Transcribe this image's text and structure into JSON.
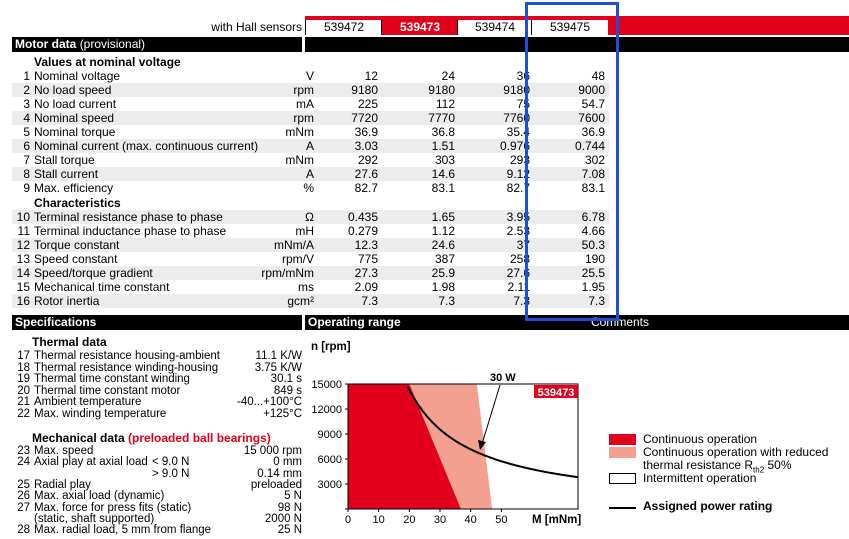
{
  "header": {
    "hall_label": "with Hall sensors",
    "variants": [
      {
        "label": "539472",
        "selected": false
      },
      {
        "label": "539473",
        "selected": true
      },
      {
        "label": "539474",
        "selected": false
      },
      {
        "label": "539475",
        "selected": false
      }
    ]
  },
  "motor_data": {
    "title": "Motor data",
    "subtitle": "(provisional)",
    "section_nominal": "Values at nominal voltage",
    "section_characteristics": "Characteristics",
    "rows": [
      {
        "n": "1",
        "label": "Nominal voltage",
        "unit": "V",
        "values": [
          "12",
          "24",
          "36",
          "48"
        ]
      },
      {
        "n": "2",
        "label": "No load speed",
        "unit": "rpm",
        "values": [
          "9180",
          "9180",
          "9180",
          "9000"
        ]
      },
      {
        "n": "3",
        "label": "No load current",
        "unit": "mA",
        "values": [
          "225",
          "112",
          "75",
          "54.7"
        ]
      },
      {
        "n": "4",
        "label": "Nominal speed",
        "unit": "rpm",
        "values": [
          "7720",
          "7770",
          "7760",
          "7600"
        ]
      },
      {
        "n": "5",
        "label": "Nominal torque",
        "unit": "mNm",
        "values": [
          "36.9",
          "36.8",
          "35.4",
          "36.9"
        ]
      },
      {
        "n": "6",
        "label": "Nominal current (max. continuous current)",
        "unit": "A",
        "values": [
          "3.03",
          "1.51",
          "0.976",
          "0.744"
        ]
      },
      {
        "n": "7",
        "label": "Stall torque",
        "unit": "mNm",
        "values": [
          "292",
          "303",
          "293",
          "302"
        ]
      },
      {
        "n": "8",
        "label": "Stall current",
        "unit": "A",
        "values": [
          "27.6",
          "14.6",
          "9.12",
          "7.08"
        ]
      },
      {
        "n": "9",
        "label": "Max. efficiency",
        "unit": "%",
        "values": [
          "82.7",
          "83.1",
          "82.7",
          "83.1"
        ]
      },
      {
        "n": "10",
        "label": "Terminal resistance phase to phase",
        "unit": "Ω",
        "values": [
          "0.435",
          "1.65",
          "3.95",
          "6.78"
        ]
      },
      {
        "n": "11",
        "label": "Terminal inductance phase to phase",
        "unit": "mH",
        "values": [
          "0.279",
          "1.12",
          "2.53",
          "4.66"
        ]
      },
      {
        "n": "12",
        "label": "Torque constant",
        "unit": "mNm/A",
        "values": [
          "12.3",
          "24.6",
          "37",
          "50.3"
        ]
      },
      {
        "n": "13",
        "label": "Speed constant",
        "unit": "rpm/V",
        "values": [
          "775",
          "387",
          "258",
          "190"
        ]
      },
      {
        "n": "14",
        "label": "Speed/torque gradient",
        "unit": "rpm/mNm",
        "values": [
          "27.3",
          "25.9",
          "27.6",
          "25.5"
        ]
      },
      {
        "n": "15",
        "label": "Mechanical time constant",
        "unit": "ms",
        "values": [
          "2.09",
          "1.98",
          "2.11",
          "1.95"
        ]
      },
      {
        "n": "16",
        "label": "Rotor inertia",
        "unit": "gcm²",
        "values": [
          "7.3",
          "7.3",
          "7.3",
          "7.3"
        ]
      }
    ]
  },
  "specifications": {
    "title": "Specifications",
    "thermal_title": "Thermal data",
    "thermal": [
      {
        "n": "17",
        "label": "Thermal resistance housing-ambient",
        "value": "11.1 K/W"
      },
      {
        "n": "18",
        "label": "Thermal resistance winding-housing",
        "value": "3.75 K/W"
      },
      {
        "n": "19",
        "label": "Thermal time constant winding",
        "value": "30.1 s"
      },
      {
        "n": "20",
        "label": "Thermal time constant motor",
        "value": "849 s"
      },
      {
        "n": "21",
        "label": "Ambient temperature",
        "value": "-40...+100°C"
      },
      {
        "n": "22",
        "label": "Max. winding temperature",
        "value": "+125°C"
      }
    ],
    "mech_title": "Mechanical data",
    "mech_title_red": "(preloaded ball bearings)",
    "mechanical": [
      {
        "n": "23",
        "label": "Max. speed",
        "sub": "",
        "value": "15 000 rpm"
      },
      {
        "n": "24",
        "label": "Axial play at axial load",
        "sub": "< 9.0 N",
        "value": "0 mm"
      },
      {
        "n": "",
        "label": "",
        "sub": "> 9.0 N",
        "value": "0.14 mm"
      },
      {
        "n": "25",
        "label": "Radial play",
        "sub": "",
        "value": "preloaded"
      },
      {
        "n": "26",
        "label": "Max. axial load (dynamic)",
        "sub": "",
        "value": "5 N"
      },
      {
        "n": "27",
        "label": "Max. force for press fits (static)",
        "sub": "",
        "value": "98 N"
      },
      {
        "n": "",
        "label": "(static, shaft supported)",
        "sub": "",
        "value": "2000 N"
      },
      {
        "n": "28",
        "label": "Max. radial load, 5 mm from flange",
        "sub": "",
        "value": "25 N"
      }
    ]
  },
  "operating_range": {
    "title": "Operating range",
    "comments_title": "Comments"
  },
  "chart_data": {
    "type": "area",
    "ylabel": "n [rpm]",
    "xlabel": "M [mNm]",
    "x_ticks": [
      "0",
      "10",
      "20",
      "30",
      "40",
      "50"
    ],
    "y_ticks": [
      "0",
      "3000",
      "6000",
      "9000",
      "12000",
      "15000"
    ],
    "xlim": [
      0,
      75
    ],
    "ylim": [
      0,
      15000
    ],
    "variant_badge": "539473",
    "power_label": "30 W",
    "continuous_boundary": [
      [
        20,
        15000
      ],
      [
        36.8,
        0
      ]
    ],
    "intermittent_boundary": [
      [
        42,
        15000
      ],
      [
        47,
        0
      ]
    ],
    "power_curve_watts": 30,
    "colors": {
      "continuous": "#e3001b",
      "reduced": "#f4a090",
      "intermittent": "#ffffff"
    }
  },
  "legend": {
    "items": [
      {
        "label": "Continuous operation",
        "color": "#e3001b"
      },
      {
        "label": "Continuous operation with reduced",
        "label2": "thermal resistance R",
        "sub": "th2",
        "label3": " 50%",
        "color": "#f4a090"
      },
      {
        "label": "Intermittent operation",
        "color": "#ffffff"
      }
    ],
    "power_label": "Assigned power rating"
  }
}
